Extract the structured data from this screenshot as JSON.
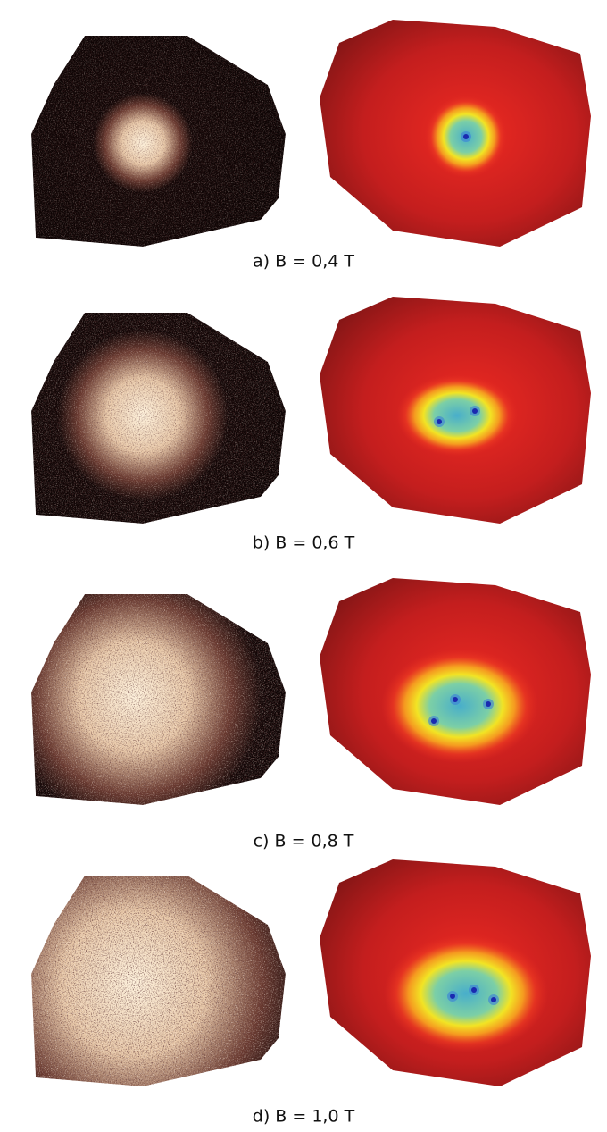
{
  "panels": [
    {
      "caption": "a) B = 0,4 T"
    },
    {
      "caption": "b) B = 0,6 T"
    },
    {
      "caption": "c) B = 0,8 T"
    },
    {
      "caption": "d) B = 1,0 T"
    }
  ]
}
